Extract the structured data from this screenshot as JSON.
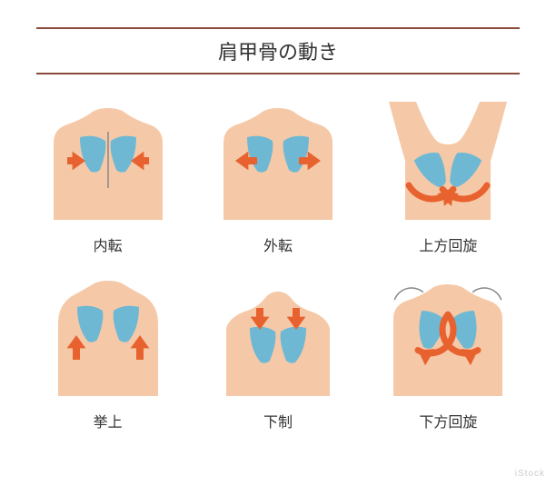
{
  "title": "肩甲骨の動き",
  "title_border_color": "#8b4a3a",
  "skin_color": "#f5c9a8",
  "scapula_color": "#6fb8d4",
  "arrow_color": "#e8622f",
  "spine_color": "#888888",
  "motion_line_color": "#888888",
  "background": "#ffffff",
  "label_fontsize": 16,
  "title_fontsize": 22,
  "items": [
    {
      "label": "内転",
      "type": "adduction"
    },
    {
      "label": "外転",
      "type": "abduction"
    },
    {
      "label": "上方回旋",
      "type": "upward_rotation"
    },
    {
      "label": "挙上",
      "type": "elevation"
    },
    {
      "label": "下制",
      "type": "depression"
    },
    {
      "label": "下方回旋",
      "type": "downward_rotation"
    }
  ],
  "watermark": "iStock",
  "layout": {
    "cols": 3,
    "rows": 2
  }
}
